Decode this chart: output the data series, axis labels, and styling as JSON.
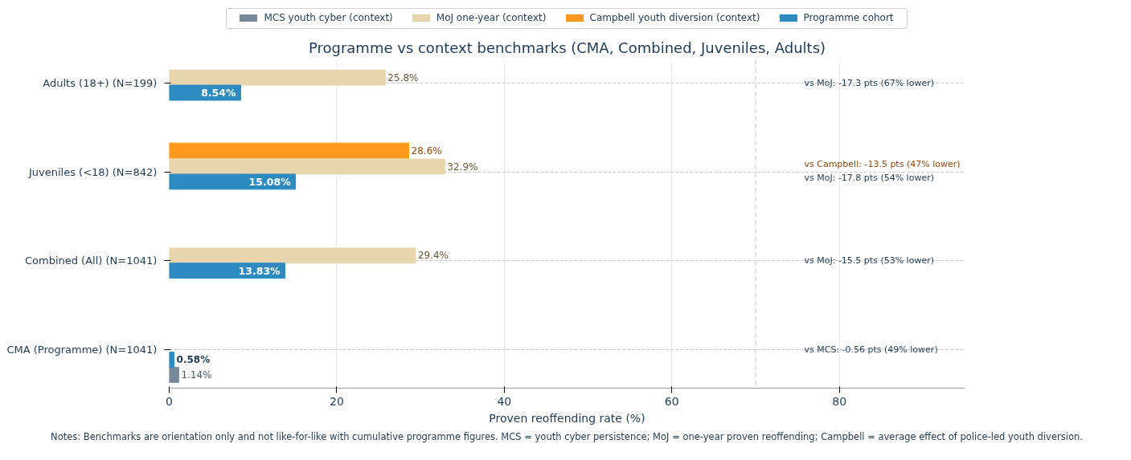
{
  "chart_data": {
    "type": "bar",
    "orientation": "horizontal",
    "title": "Programme vs context benchmarks (CMA, Combined, Juveniles, Adults)",
    "xlabel": "Proven reoffending rate (%)",
    "categories": [
      "Adults (18+)  (N=199)",
      "Juveniles (<18)  (N=842)",
      "Combined (All)  (N=1041)",
      "CMA (Programme)  (N=1041)"
    ],
    "series": [
      {
        "name": "MCS youth cyber (context)",
        "color": "#778899",
        "values": [
          null,
          null,
          null,
          1.14
        ],
        "value_labels": [
          null,
          null,
          null,
          "1.14%"
        ]
      },
      {
        "name": "MoJ one-year (context)",
        "color": "#e8d5ae",
        "values": [
          25.8,
          32.9,
          29.4,
          null
        ],
        "value_labels": [
          "25.8%",
          "32.9%",
          "29.4%",
          null
        ]
      },
      {
        "name": "Campbell youth diversion (context)",
        "color": "#ff9a1f",
        "values": [
          null,
          28.6,
          null,
          null
        ],
        "value_labels": [
          null,
          "28.6%",
          null,
          null
        ]
      },
      {
        "name": "Programme cohort",
        "color": "#2e8bc0",
        "values": [
          8.54,
          15.08,
          13.83,
          0.58
        ],
        "value_labels": [
          "8.54%",
          "15.08%",
          "13.83%",
          "0.58%"
        ]
      }
    ],
    "xlim": [
      0,
      95
    ],
    "xticks": [
      0,
      20,
      40,
      60,
      80
    ],
    "ref_lines": [
      {
        "axis": "x",
        "value": 70,
        "label": null,
        "color": "#cccccc",
        "line_style": "dashed"
      }
    ],
    "annotations": [
      "vs MoJ: -17.3 pts (67% lower)",
      "vs Campbell: -13.5 pts (47% lower)",
      "vs MoJ: -17.8 pts (54% lower)",
      "vs MoJ: -15.5 pts (53% lower)",
      "vs MCS: -0.56 pts (49% lower)",
      "Notes: Benchmarks are orientation only and not like-for-like with cumulative programme figures. MCS = youth cyber persistence; MoJ = one-year proven reoffending; Campbell = average effect of police-led youth diversion."
    ],
    "grid": true,
    "legend": "top"
  }
}
